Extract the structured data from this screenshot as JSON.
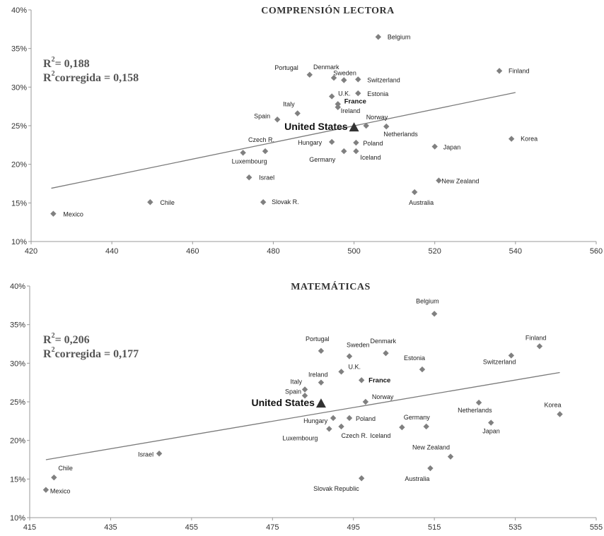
{
  "chart_data": [
    {
      "type": "scatter",
      "title": "COMPRENSIÓN LECTORA",
      "stats": {
        "r2": "= 0,188",
        "r2_adjusted": "corregida = 0,158"
      },
      "xlim": [
        420,
        560
      ],
      "x_ticks": [
        420,
        440,
        460,
        480,
        500,
        520,
        540,
        560
      ],
      "ylim": [
        10,
        40
      ],
      "y_ticks": [
        10,
        15,
        20,
        25,
        30,
        35,
        40
      ],
      "y_tick_labels": [
        "10%",
        "15%",
        "20%",
        "25%",
        "30%",
        "35%",
        "40%"
      ],
      "grid": false,
      "marker_color": "#808080",
      "trend_color": "#7a7a7a",
      "trendline": [
        [
          425,
          16.9
        ],
        [
          540,
          29.3
        ]
      ],
      "highlight": {
        "label": "United States",
        "x": 500,
        "y": 24.8,
        "marker_color": "#333333"
      },
      "points": [
        {
          "label": "Belgium",
          "x": 506,
          "y": 36.5
        },
        {
          "label": "Finland",
          "x": 536,
          "y": 32.1
        },
        {
          "label": "Portugal",
          "x": 489,
          "y": 31.6
        },
        {
          "label": "Denmark",
          "x": 495,
          "y": 31.2
        },
        {
          "label": "Sweden",
          "x": 497.5,
          "y": 30.9
        },
        {
          "label": "Switzerland",
          "x": 501,
          "y": 31.0
        },
        {
          "label": "Estonia",
          "x": 501,
          "y": 29.2
        },
        {
          "label": "U.K.",
          "x": 494.5,
          "y": 28.8
        },
        {
          "label": "France",
          "x": 496,
          "y": 27.8
        },
        {
          "label": "Ireland",
          "x": 496,
          "y": 27.4
        },
        {
          "label": "Italy",
          "x": 486,
          "y": 26.6
        },
        {
          "label": "Spain",
          "x": 481,
          "y": 25.8
        },
        {
          "label": "Norway",
          "x": 503,
          "y": 25.0
        },
        {
          "label": "Netherlands",
          "x": 508,
          "y": 24.9
        },
        {
          "label": "Korea",
          "x": 539,
          "y": 23.3
        },
        {
          "label": "Hungary",
          "x": 494.5,
          "y": 22.9
        },
        {
          "label": "Poland",
          "x": 500.5,
          "y": 22.8
        },
        {
          "label": "Japan",
          "x": 520,
          "y": 22.3
        },
        {
          "label": "Czech R.",
          "x": 478,
          "y": 21.7
        },
        {
          "label": "Luxembourg",
          "x": 472.5,
          "y": 21.5
        },
        {
          "label": "Germany",
          "x": 497.5,
          "y": 21.7
        },
        {
          "label": "Iceland",
          "x": 500.5,
          "y": 21.7
        },
        {
          "label": "Israel",
          "x": 474,
          "y": 18.3
        },
        {
          "label": "New Zealand",
          "x": 521,
          "y": 17.9
        },
        {
          "label": "Australia",
          "x": 515,
          "y": 16.4
        },
        {
          "label": "Chile",
          "x": 449.5,
          "y": 15.1
        },
        {
          "label": "Slovak R.",
          "x": 477.5,
          "y": 15.1
        },
        {
          "label": "Mexico",
          "x": 425.5,
          "y": 13.6
        }
      ]
    },
    {
      "type": "scatter",
      "title": "MATEMÁTICAS",
      "stats": {
        "r2": "= 0,206",
        "r2_adjusted": "corregida = 0,177"
      },
      "xlim": [
        415,
        555
      ],
      "x_ticks": [
        415,
        435,
        455,
        475,
        495,
        515,
        535,
        555
      ],
      "ylim": [
        10,
        40
      ],
      "y_ticks": [
        10,
        15,
        20,
        25,
        30,
        35,
        40
      ],
      "y_tick_labels": [
        "10%",
        "15%",
        "20%",
        "25%",
        "30%",
        "35%",
        "40%"
      ],
      "grid": false,
      "marker_color": "#808080",
      "trend_color": "#7a7a7a",
      "trendline": [
        [
          419,
          17.5
        ],
        [
          546,
          28.8
        ]
      ],
      "highlight": {
        "label": "United States",
        "x": 487,
        "y": 24.8,
        "marker_color": "#333333"
      },
      "points": [
        {
          "label": "Belgium",
          "x": 515,
          "y": 36.4
        },
        {
          "label": "Finland",
          "x": 541,
          "y": 32.2
        },
        {
          "label": "Switzerland",
          "x": 534,
          "y": 31.0
        },
        {
          "label": "Portugal",
          "x": 487,
          "y": 31.6
        },
        {
          "label": "Sweden",
          "x": 494,
          "y": 30.9
        },
        {
          "label": "Denmark",
          "x": 503,
          "y": 31.3
        },
        {
          "label": "Estonia",
          "x": 512,
          "y": 29.2
        },
        {
          "label": "U.K.",
          "x": 492,
          "y": 28.9
        },
        {
          "label": "France",
          "x": 497,
          "y": 27.8
        },
        {
          "label": "Ireland",
          "x": 487,
          "y": 27.5
        },
        {
          "label": "Italy",
          "x": 483,
          "y": 26.6
        },
        {
          "label": "Spain",
          "x": 483,
          "y": 25.8
        },
        {
          "label": "Norway",
          "x": 498,
          "y": 25.0
        },
        {
          "label": "Netherlands",
          "x": 526,
          "y": 24.9
        },
        {
          "label": "Korea",
          "x": 546,
          "y": 23.4
        },
        {
          "label": "Hungary",
          "x": 490,
          "y": 22.9
        },
        {
          "label": "Poland",
          "x": 494,
          "y": 22.9
        },
        {
          "label": "Japan",
          "x": 529,
          "y": 22.3
        },
        {
          "label": "Czech R.",
          "x": 492,
          "y": 21.8
        },
        {
          "label": "Luxembourg",
          "x": 489,
          "y": 21.5
        },
        {
          "label": "Germany",
          "x": 513,
          "y": 21.8
        },
        {
          "label": "Iceland",
          "x": 507,
          "y": 21.7
        },
        {
          "label": "Israel",
          "x": 447,
          "y": 18.3
        },
        {
          "label": "New Zealand",
          "x": 519,
          "y": 17.9
        },
        {
          "label": "Australia",
          "x": 514,
          "y": 16.4
        },
        {
          "label": "Chile",
          "x": 421,
          "y": 15.2
        },
        {
          "label": "Slovak Republic",
          "x": 497,
          "y": 15.1
        },
        {
          "label": "Mexico",
          "x": 419,
          "y": 13.6
        }
      ]
    }
  ]
}
